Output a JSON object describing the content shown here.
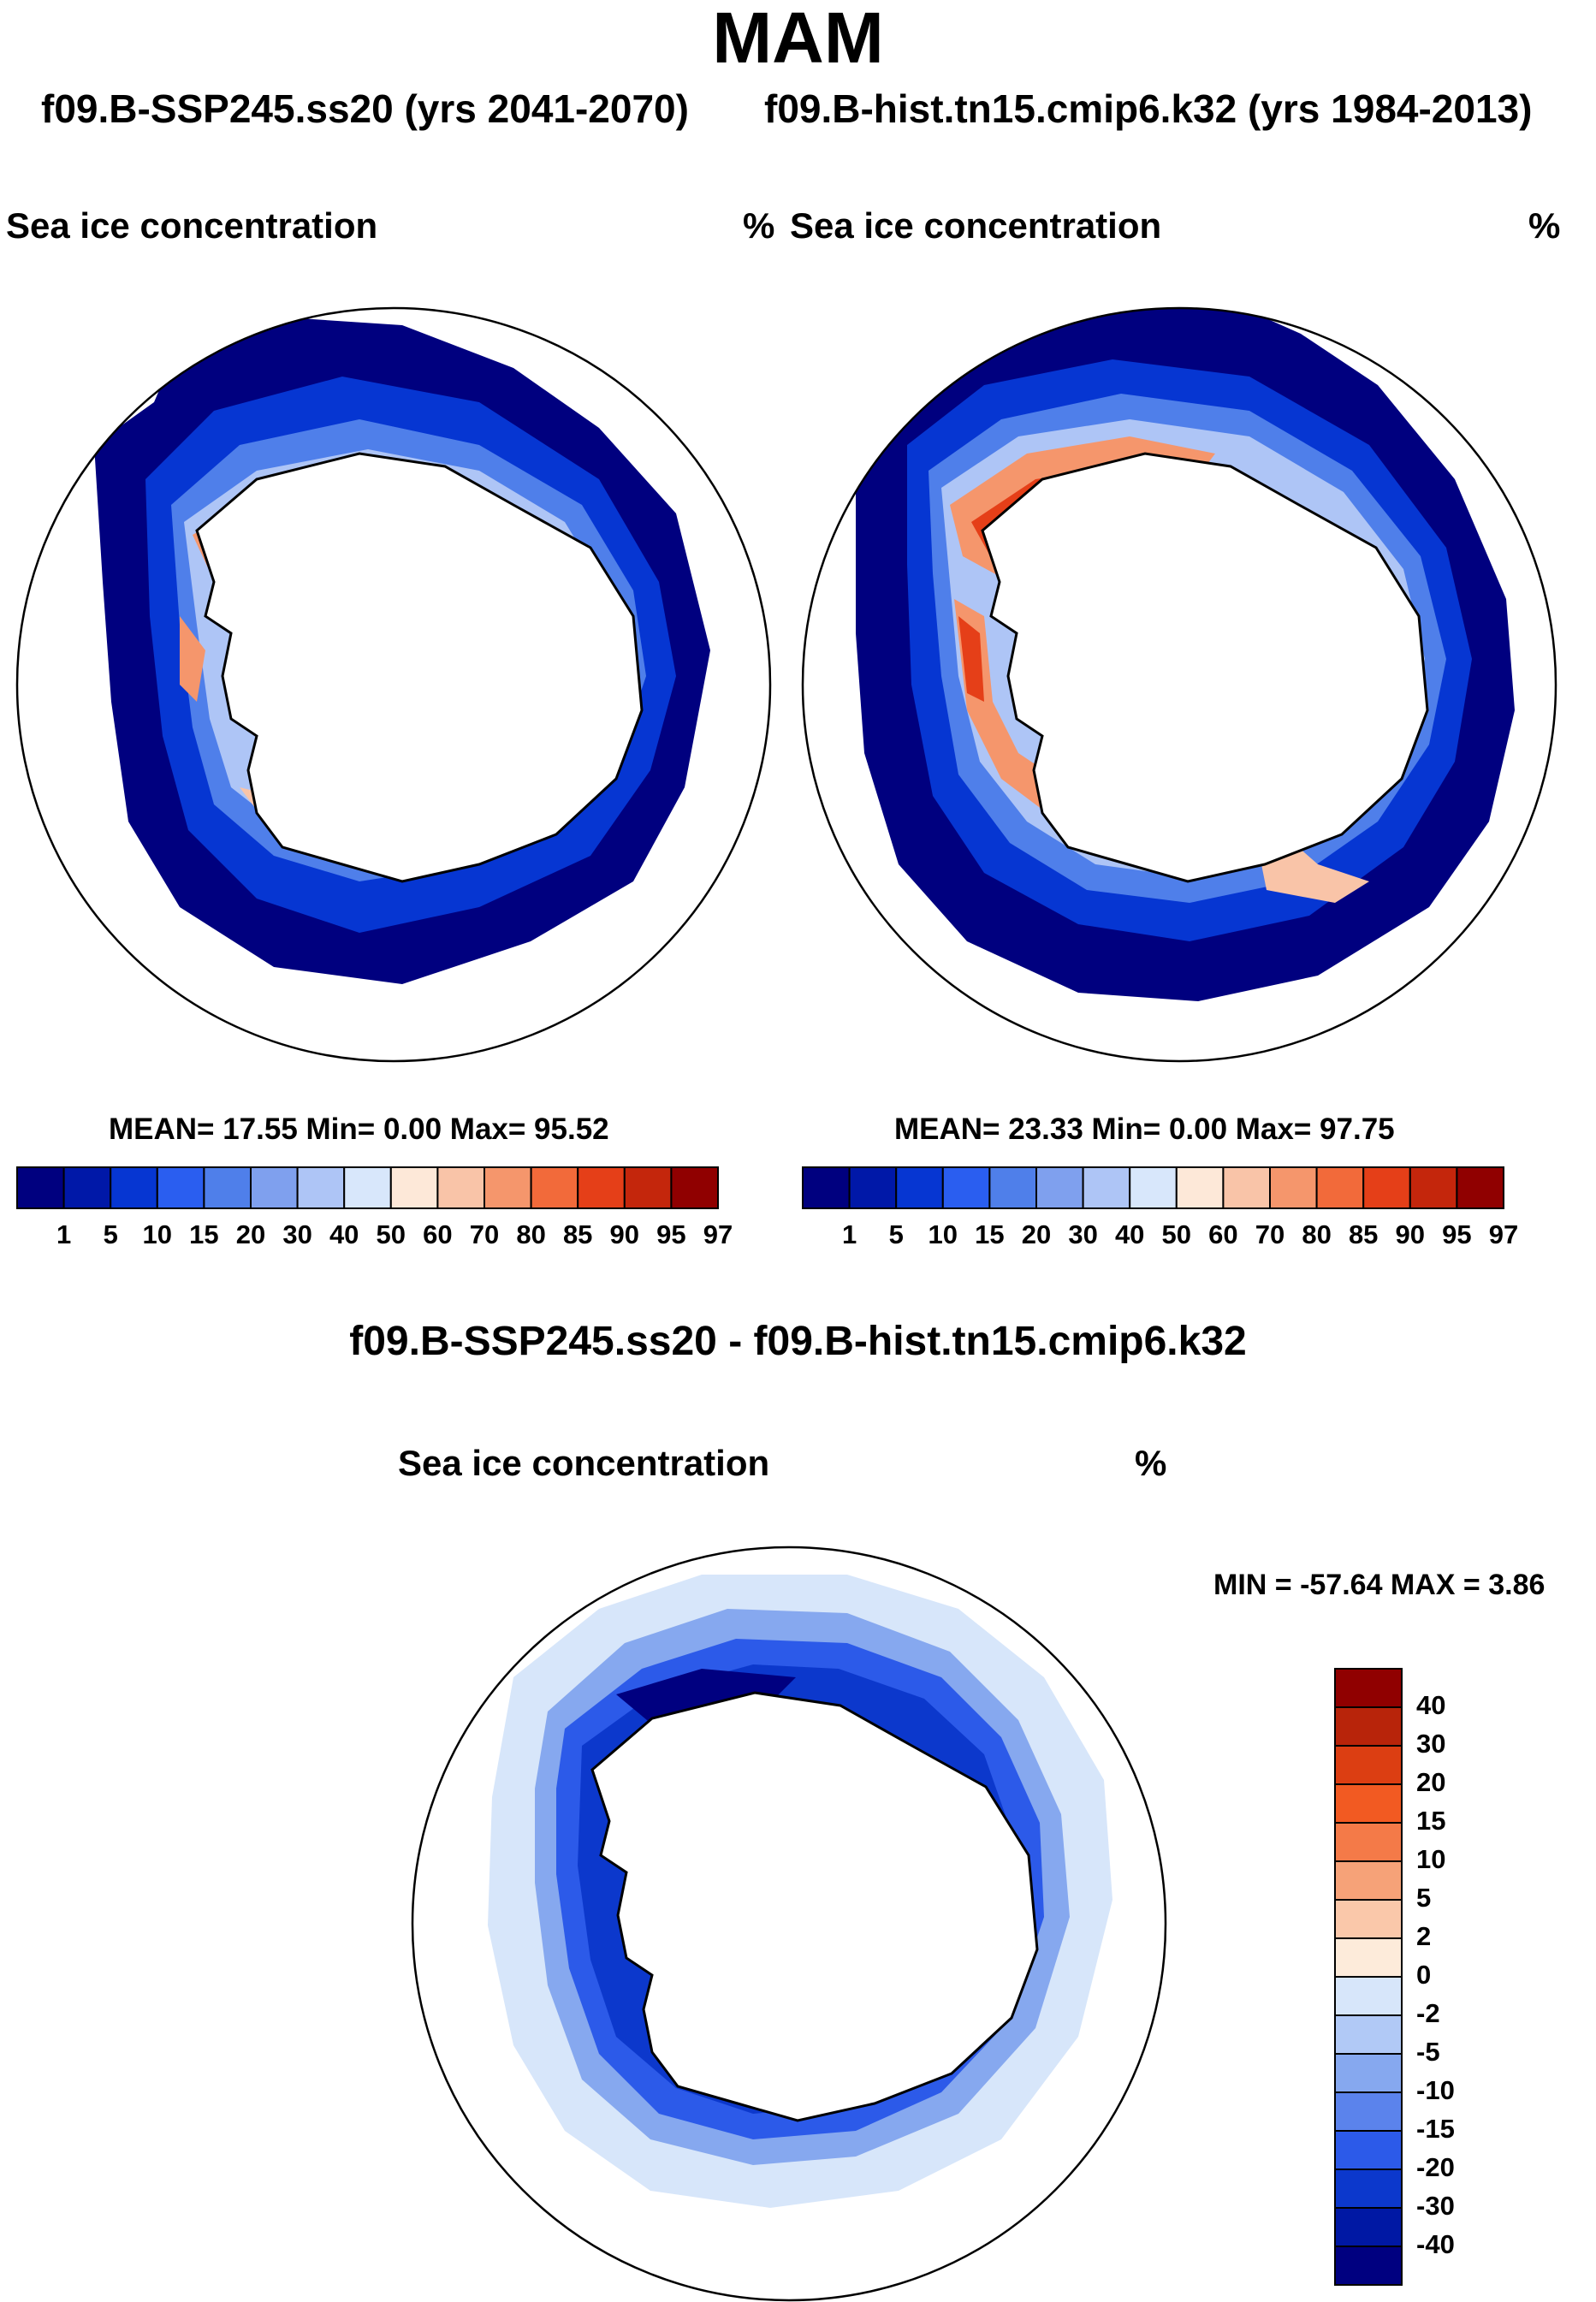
{
  "title": "MAM",
  "case_left": "f09.B-SSP245.ss20 (yrs 2041-2070)",
  "case_right": "f09.B-hist.tn15.cmip6.k32 (yrs 1984-2013)",
  "panels": [
    {
      "variable": "Sea ice concentration",
      "units": "%",
      "stats": "MEAN=  17.55  Min=    0.00  Max=  95.52"
    },
    {
      "variable": "Sea ice concentration",
      "units": "%",
      "stats": "MEAN=  23.33  Min=    0.00  Max=  97.75"
    }
  ],
  "abs_colorbar": {
    "labels": [
      "1",
      "5",
      "10",
      "15",
      "20",
      "30",
      "40",
      "50",
      "60",
      "70",
      "80",
      "85",
      "90",
      "95",
      "97"
    ],
    "colors": [
      "#00007f",
      "#0018a8",
      "#0636d2",
      "#2a5ef0",
      "#4f7fea",
      "#7fa0ee",
      "#aec5f6",
      "#d8e7fb",
      "#fde8d8",
      "#f9c4a8",
      "#f5966c",
      "#f26a3a",
      "#e53f18",
      "#c4260c",
      "#900000"
    ]
  },
  "diff_title": "f09.B-SSP245.ss20 - f09.B-hist.tn15.cmip6.k32",
  "diff_panel": {
    "variable": "Sea ice concentration",
    "units": "%",
    "minmax": "MIN = -57.64 MAX =   3.86"
  },
  "diff_colorbar": {
    "labels": [
      "40",
      "30",
      "20",
      "15",
      "10",
      "5",
      "2",
      "0",
      "-2",
      "-5",
      "-10",
      "-15",
      "-20",
      "-30",
      "-40"
    ],
    "colors": [
      "#900000",
      "#b8240a",
      "#dc3e12",
      "#f25a22",
      "#f47a48",
      "#f6a278",
      "#fac8aa",
      "#fdebda",
      "#d7e6fa",
      "#b1c9f6",
      "#86a8ef",
      "#5b83ec",
      "#2c5ae9",
      "#0c38cc",
      "#0018a4",
      "#000080"
    ]
  }
}
